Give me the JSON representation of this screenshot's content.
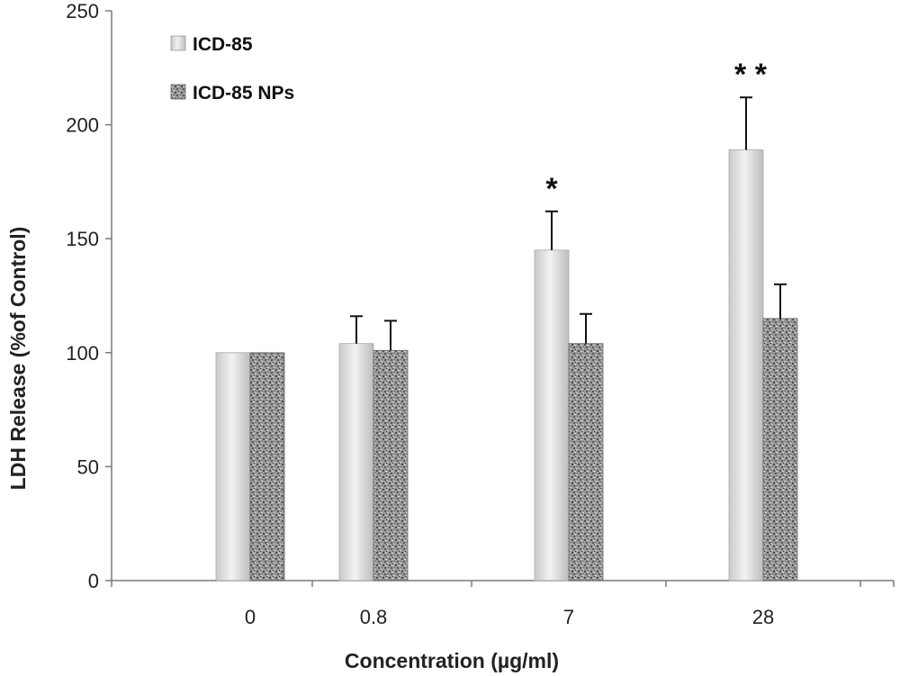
{
  "chart_data": {
    "type": "bar",
    "title": "",
    "xlabel": "Concentration (µg/ml)",
    "ylabel": "LDH Release (%of Control)",
    "ylim": [
      0,
      250
    ],
    "yticks": [
      "0",
      "50",
      "100",
      "150",
      "200",
      "250"
    ],
    "categories": [
      "0",
      "0.8",
      "7",
      "28"
    ],
    "series": [
      {
        "name": "ICD-85",
        "values": [
          100,
          104,
          145,
          189
        ],
        "errors": [
          0,
          12,
          17,
          23
        ],
        "color": "#e2e2e2"
      },
      {
        "name": "ICD-85 NPs",
        "values": [
          100,
          101,
          104,
          115
        ],
        "errors": [
          0,
          13,
          13,
          15
        ],
        "color": "#8a8a8a"
      }
    ],
    "annotations": [
      {
        "category": "7",
        "text": "*"
      },
      {
        "category": "28",
        "text": "**"
      }
    ],
    "grid": false,
    "legend_position": "top-left"
  }
}
